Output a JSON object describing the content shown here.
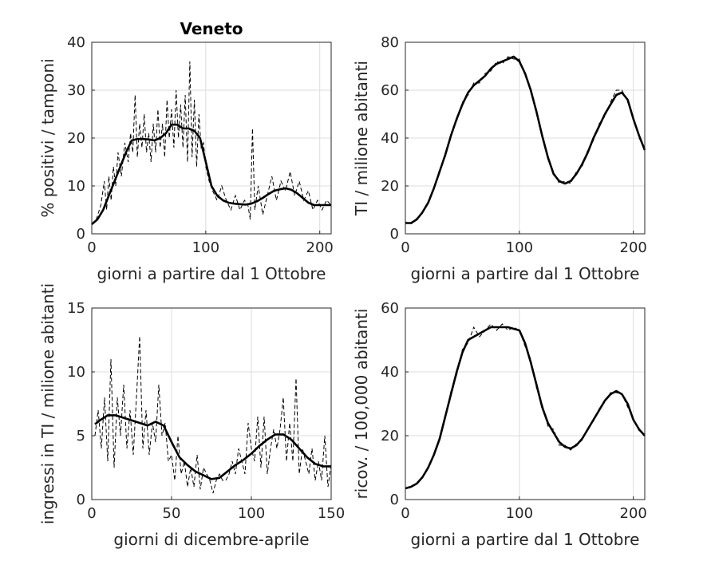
{
  "chart_data": [
    {
      "type": "line",
      "title": "Veneto",
      "xlabel": "giorni a partire dal 1 Ottobre",
      "ylabel": "% positivi / tamponi",
      "xlim": [
        0,
        210
      ],
      "ylim": [
        0,
        40
      ],
      "xticks": [
        0,
        100,
        200
      ],
      "yticks": [
        0,
        10,
        20,
        30,
        40
      ],
      "grid": true,
      "series": [
        {
          "style": "smoothed-solid",
          "x": [
            0,
            5,
            10,
            15,
            20,
            25,
            30,
            35,
            40,
            45,
            50,
            55,
            60,
            65,
            70,
            75,
            80,
            85,
            90,
            95,
            100,
            105,
            110,
            115,
            120,
            125,
            130,
            135,
            140,
            145,
            150,
            155,
            160,
            165,
            170,
            175,
            180,
            185,
            190,
            195,
            200,
            205,
            210
          ],
          "y": [
            2,
            3,
            5,
            8,
            11,
            14,
            17,
            19.5,
            19.8,
            19.8,
            19.7,
            19.5,
            20,
            21,
            22.8,
            22.8,
            22,
            22,
            21.5,
            20,
            15,
            10,
            8,
            7,
            6.5,
            6.3,
            6.2,
            6.1,
            6.3,
            6.8,
            7.5,
            8.3,
            9,
            9.3,
            9.5,
            9.2,
            8.5,
            7.5,
            6.5,
            6,
            6,
            6,
            6
          ]
        },
        {
          "style": "raw-dashed",
          "x": [
            0,
            4,
            8,
            11,
            13,
            15,
            17,
            19,
            21,
            23,
            26,
            29,
            32,
            34,
            36,
            38,
            40,
            42,
            44,
            46,
            48,
            50,
            52,
            54,
            56,
            58,
            60,
            62,
            64,
            66,
            68,
            70,
            72,
            74,
            76,
            78,
            80,
            82,
            84,
            86,
            88,
            90,
            92,
            94,
            96,
            98,
            100,
            103,
            106,
            110,
            114,
            118,
            122,
            126,
            130,
            134,
            137,
            139,
            141,
            143,
            146,
            150,
            154,
            158,
            162,
            166,
            170,
            174,
            178,
            182,
            186,
            190,
            194,
            198,
            202,
            206,
            210
          ],
          "y": [
            2,
            3,
            6,
            11,
            5,
            12,
            7,
            14,
            10,
            17,
            12,
            19,
            15,
            21,
            17,
            29,
            16,
            23,
            18,
            25,
            17,
            21,
            15,
            23,
            17,
            26,
            18,
            23,
            16,
            28,
            20,
            26,
            18,
            30,
            20,
            27,
            18,
            29,
            15,
            36,
            16,
            28,
            14,
            25,
            18,
            19,
            14,
            11,
            9,
            7,
            10,
            7,
            5,
            8,
            5,
            7,
            6,
            3,
            22,
            5,
            10,
            4,
            8,
            12,
            7,
            11,
            9,
            13,
            8,
            11,
            7,
            9,
            5,
            7,
            5,
            7,
            6
          ]
        }
      ]
    },
    {
      "type": "line",
      "xlabel": "giorni a partire dal 1 Ottobre",
      "ylabel": "TI / milione abitanti",
      "xlim": [
        0,
        210
      ],
      "ylim": [
        0,
        80
      ],
      "xticks": [
        0,
        100,
        200
      ],
      "yticks": [
        0,
        20,
        40,
        60,
        80
      ],
      "grid": true,
      "series": [
        {
          "style": "smoothed-solid",
          "x": [
            0,
            5,
            10,
            15,
            20,
            25,
            30,
            35,
            40,
            45,
            50,
            55,
            60,
            65,
            70,
            75,
            80,
            85,
            90,
            95,
            100,
            105,
            110,
            115,
            120,
            125,
            130,
            135,
            140,
            145,
            150,
            155,
            160,
            165,
            170,
            175,
            180,
            185,
            190,
            195,
            200,
            205,
            210
          ],
          "y": [
            4.5,
            4.5,
            6,
            9,
            13,
            19,
            26,
            33,
            41,
            48,
            54,
            59,
            62,
            64,
            66,
            69,
            71,
            72,
            73,
            74,
            72,
            67,
            60,
            51,
            41,
            32,
            25,
            22,
            21,
            22,
            25,
            29,
            34,
            40,
            45,
            50,
            54,
            58,
            59,
            56,
            48,
            41,
            35
          ]
        },
        {
          "style": "raw-dashed",
          "x": [
            0,
            5,
            10,
            15,
            20,
            25,
            30,
            35,
            40,
            45,
            50,
            55,
            60,
            65,
            70,
            75,
            80,
            85,
            90,
            95,
            100,
            105,
            110,
            115,
            120,
            125,
            130,
            135,
            140,
            145,
            150,
            155,
            160,
            165,
            170,
            175,
            180,
            185,
            190,
            195,
            200,
            205,
            210
          ],
          "y": [
            5,
            4,
            6.5,
            8.5,
            13.5,
            18.5,
            27,
            32,
            42,
            47,
            55,
            58,
            63,
            63,
            67,
            68,
            72,
            71,
            74,
            73,
            73,
            66,
            61,
            50,
            42,
            31,
            26,
            21,
            22,
            21,
            26,
            28,
            35,
            39,
            46,
            49,
            55,
            60,
            60,
            55,
            49,
            40,
            36
          ]
        }
      ]
    },
    {
      "type": "line",
      "xlabel": "giorni di dicembre-aprile",
      "ylabel": "ingressi in TI / milione abitanti",
      "xlim": [
        0,
        150
      ],
      "ylim": [
        0,
        15
      ],
      "xticks": [
        0,
        50,
        100,
        150
      ],
      "yticks": [
        0,
        5,
        10,
        15
      ],
      "grid": true,
      "series": [
        {
          "style": "smoothed-solid",
          "x": [
            2,
            5,
            10,
            15,
            20,
            25,
            30,
            35,
            40,
            45,
            50,
            55,
            60,
            65,
            70,
            75,
            80,
            85,
            90,
            95,
            100,
            105,
            110,
            115,
            120,
            125,
            130,
            135,
            140,
            145,
            150
          ],
          "y": [
            5.9,
            6.2,
            6.6,
            6.6,
            6.4,
            6.2,
            6,
            5.8,
            6.1,
            5.8,
            4.5,
            3.3,
            2.7,
            2.2,
            1.9,
            1.6,
            1.7,
            2.2,
            2.7,
            3.1,
            3.6,
            4.2,
            4.7,
            5.1,
            5.1,
            4.7,
            4,
            3.3,
            2.8,
            2.6,
            2.6
          ]
        },
        {
          "style": "raw-dashed",
          "x": [
            2,
            4,
            6,
            8,
            10,
            12,
            14,
            16,
            18,
            20,
            22,
            24,
            26,
            28,
            30,
            32,
            34,
            36,
            38,
            40,
            42,
            44,
            46,
            48,
            50,
            52,
            54,
            56,
            58,
            60,
            62,
            64,
            66,
            68,
            70,
            72,
            74,
            76,
            78,
            80,
            82,
            84,
            86,
            88,
            90,
            92,
            94,
            96,
            98,
            100,
            102,
            104,
            106,
            108,
            110,
            112,
            114,
            116,
            118,
            120,
            122,
            124,
            126,
            128,
            130,
            132,
            134,
            136,
            138,
            140,
            142,
            144,
            146,
            148,
            150
          ],
          "y": [
            5,
            7,
            4,
            8,
            3,
            11,
            2.5,
            8,
            5,
            9,
            4,
            7,
            3.5,
            8,
            12.8,
            4,
            7,
            3.5,
            6,
            4.5,
            9,
            5,
            6,
            3,
            3.5,
            1.5,
            5,
            2,
            3,
            1,
            2.5,
            1,
            3.5,
            0.8,
            2.5,
            2,
            1.5,
            0.5,
            1.5,
            2,
            1.5,
            1.5,
            2,
            3,
            2,
            4,
            3,
            2,
            6,
            4,
            3,
            6.5,
            2.5,
            6.5,
            2,
            4,
            5.5,
            4,
            5.5,
            8,
            3,
            6,
            3,
            9.5,
            2,
            4,
            3,
            2,
            4,
            1.5,
            3,
            1.5,
            5,
            1,
            2.8
          ]
        }
      ]
    },
    {
      "type": "line",
      "xlabel": "giorni a partire dal 1 Ottobre",
      "ylabel": "ricov. / 100,000 abitanti",
      "xlim": [
        0,
        210
      ],
      "ylim": [
        0,
        60
      ],
      "xticks": [
        0,
        100,
        200
      ],
      "yticks": [
        0,
        20,
        40,
        60
      ],
      "grid": true,
      "series": [
        {
          "style": "smoothed-solid",
          "x": [
            0,
            5,
            10,
            15,
            20,
            25,
            30,
            35,
            40,
            45,
            50,
            55,
            60,
            65,
            70,
            75,
            80,
            85,
            90,
            95,
            100,
            105,
            110,
            115,
            120,
            125,
            130,
            135,
            140,
            145,
            150,
            155,
            160,
            165,
            170,
            175,
            180,
            185,
            190,
            195,
            200,
            205,
            210
          ],
          "y": [
            3.5,
            4,
            5,
            7,
            10,
            14,
            19,
            26,
            33,
            40,
            46,
            50,
            51,
            52,
            53,
            54,
            54,
            54,
            54,
            53.5,
            53,
            49,
            43,
            36,
            29,
            24,
            21,
            18,
            16.5,
            16,
            17,
            19,
            22,
            25,
            28,
            31,
            33,
            34,
            33,
            30,
            25,
            22,
            20
          ]
        },
        {
          "style": "raw-dashed",
          "x": [
            0,
            5,
            10,
            15,
            20,
            25,
            30,
            35,
            40,
            45,
            50,
            55,
            60,
            65,
            70,
            75,
            80,
            85,
            90,
            95,
            100,
            105,
            110,
            115,
            120,
            125,
            130,
            135,
            140,
            145,
            150,
            155,
            160,
            165,
            170,
            175,
            180,
            185,
            190,
            195,
            200,
            205,
            210
          ],
          "y": [
            3.5,
            4.2,
            5.2,
            6.8,
            10.5,
            13.5,
            19.5,
            25.5,
            34,
            39,
            47,
            49,
            54,
            51,
            53,
            55,
            53,
            55,
            53,
            54,
            53,
            48,
            44,
            35,
            30,
            23,
            22,
            17,
            17,
            15.5,
            17.5,
            18.5,
            22.5,
            24.5,
            28.5,
            30.5,
            33.5,
            33.5,
            33,
            29,
            25.5,
            21.5,
            20
          ]
        }
      ]
    }
  ]
}
